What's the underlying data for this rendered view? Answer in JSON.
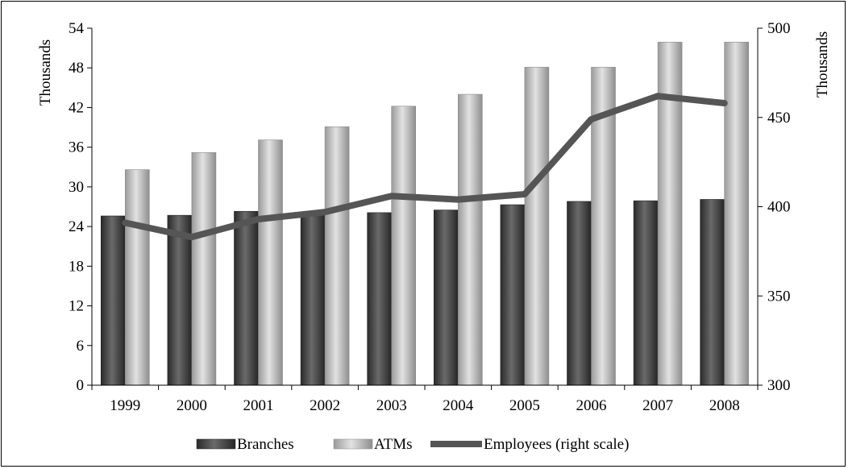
{
  "chart_data": {
    "type": "bar",
    "categories": [
      "1999",
      "2000",
      "2001",
      "2002",
      "2003",
      "2004",
      "2005",
      "2006",
      "2007",
      "2008"
    ],
    "series": [
      {
        "name": "Branches",
        "kind": "bar",
        "axis": "left",
        "color": "#3a3a3a",
        "values": [
          25.6,
          25.7,
          26.3,
          26.0,
          26.1,
          26.5,
          27.3,
          27.8,
          27.9,
          28.1
        ]
      },
      {
        "name": "ATMs",
        "kind": "bar",
        "axis": "left",
        "color": "#b4b4b4",
        "values": [
          32.6,
          35.2,
          37.1,
          39.1,
          42.2,
          44.0,
          48.1,
          48.1,
          51.9,
          51.9
        ]
      },
      {
        "name": "Employees (right scale)",
        "kind": "line",
        "axis": "right",
        "color": "#555555",
        "values": [
          391,
          383,
          393,
          397,
          406,
          404,
          407,
          449,
          462,
          458
        ]
      }
    ],
    "left_axis": {
      "label": "Thousands",
      "ylim": [
        0,
        54
      ],
      "ticks": [
        "0",
        "6",
        "12",
        "18",
        "24",
        "30",
        "36",
        "42",
        "48",
        "54"
      ]
    },
    "right_axis": {
      "label": "Thousands",
      "ylim": [
        300,
        500
      ],
      "ticks": [
        "300",
        "350",
        "400",
        "450",
        "500"
      ]
    },
    "legend_position": "bottom",
    "grid": false
  }
}
